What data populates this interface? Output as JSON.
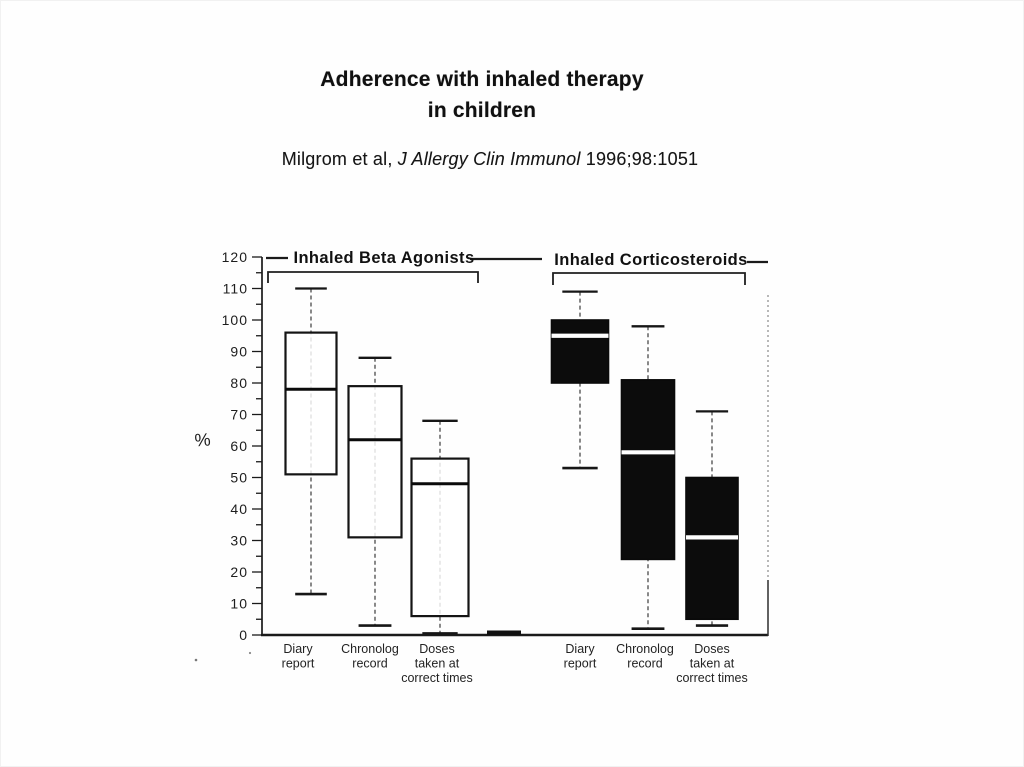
{
  "slide": {
    "title_line1": "Adherence with inhaled therapy",
    "title_line2": "in children",
    "citation_prefix": "Milgrom et al, ",
    "citation_journal": "J Allergy Clin Immunol",
    "citation_suffix": " 1996;98:1051"
  },
  "chart_data": {
    "type": "boxplot",
    "title": "Adherence with inhaled therapy in children",
    "ylabel": "%",
    "unit": "%",
    "ylim": [
      0,
      120
    ],
    "y_tick_step_major": 10,
    "y_tick_step_minor": 5,
    "grid": false,
    "groups": [
      {
        "label": "Inhaled Beta Agonists",
        "style": "open-white-boxes",
        "categories": [
          "Diary report",
          "Chronolog record",
          "Doses taken at correct times"
        ],
        "category_label_lines": [
          [
            "Diary",
            "report"
          ],
          [
            "Chronolog",
            "record"
          ],
          [
            "Doses",
            "taken at",
            "correct times"
          ]
        ],
        "boxes": [
          {
            "category": "Diary report",
            "whisker_low": 13,
            "q1": 51,
            "median": 78,
            "q3": 96,
            "whisker_high": 110
          },
          {
            "category": "Chronolog record",
            "whisker_low": 3,
            "q1": 31,
            "median": 62,
            "q3": 79,
            "whisker_high": 88
          },
          {
            "category": "Doses taken at correct times",
            "whisker_low": 0,
            "q1": 6,
            "median": 48,
            "q3": 56,
            "whisker_high": 68
          }
        ]
      },
      {
        "label": "Inhaled Corticosteroids",
        "style": "solid-black-boxes",
        "categories": [
          "Diary report",
          "Chronolog record",
          "Doses taken at correct times"
        ],
        "category_label_lines": [
          [
            "Diary",
            "report"
          ],
          [
            "Chronolog",
            "record"
          ],
          [
            "Doses",
            "taken at",
            "correct times"
          ]
        ],
        "boxes": [
          {
            "category": "Diary report",
            "whisker_low": 53,
            "q1": 80,
            "median": 95,
            "q3": 100,
            "whisker_high": 109
          },
          {
            "category": "Chronolog record",
            "whisker_low": 2,
            "q1": 24,
            "median": 58,
            "q3": 81,
            "whisker_high": 98
          },
          {
            "category": "Doses taken at correct times",
            "whisker_low": 3,
            "q1": 5,
            "median": 31,
            "q3": 50,
            "whisker_high": 71
          }
        ]
      }
    ]
  },
  "colors": {
    "ink": "#161616",
    "box_black": "#0c0c0c",
    "axis": "#1a1a1a",
    "muted": "#555555"
  }
}
